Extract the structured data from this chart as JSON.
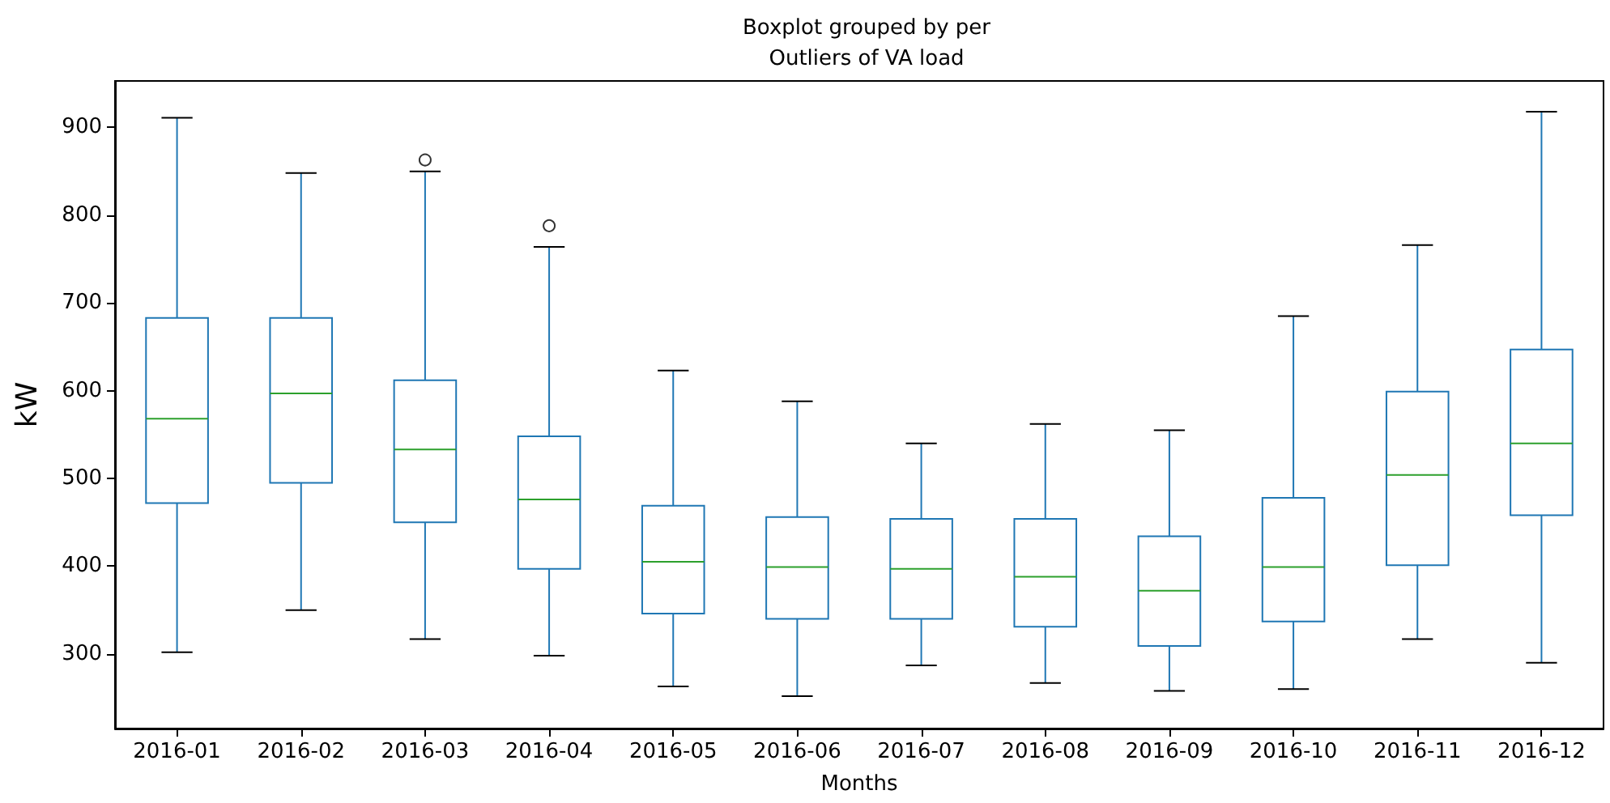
{
  "chart_data": {
    "type": "box",
    "title": "Boxplot grouped by per",
    "subtitle": "Outliers of VA load",
    "xlabel": "Months",
    "ylabel": "kW",
    "categories": [
      "2016-01",
      "2016-02",
      "2016-03",
      "2016-04",
      "2016-05",
      "2016-06",
      "2016-07",
      "2016-08",
      "2016-09",
      "2016-10",
      "2016-11",
      "2016-12"
    ],
    "ylim": [
      215,
      953
    ],
    "yticks": [
      300,
      400,
      500,
      600,
      700,
      800,
      900
    ],
    "grid": false,
    "series": [
      {
        "color": "#1f77b4",
        "boxes": [
          {
            "low": 302,
            "q1": 472,
            "median": 568,
            "q3": 683,
            "high": 911
          },
          {
            "low": 350,
            "q1": 495,
            "median": 597,
            "q3": 683,
            "high": 848
          },
          {
            "low": 317,
            "q1": 450,
            "median": 533,
            "q3": 612,
            "high": 850,
            "outliers": [
              863
            ]
          },
          {
            "low": 298,
            "q1": 397,
            "median": 476,
            "q3": 548,
            "high": 764,
            "outliers": [
              788
            ]
          },
          {
            "low": 263,
            "q1": 346,
            "median": 405,
            "q3": 469,
            "high": 623
          },
          {
            "low": 252,
            "q1": 340,
            "median": 399,
            "q3": 456,
            "high": 588
          },
          {
            "low": 287,
            "q1": 340,
            "median": 397,
            "q3": 454,
            "high": 540
          },
          {
            "low": 267,
            "q1": 331,
            "median": 388,
            "q3": 454,
            "high": 562
          },
          {
            "low": 258,
            "q1": 309,
            "median": 372,
            "q3": 434,
            "high": 555
          },
          {
            "low": 260,
            "q1": 337,
            "median": 399,
            "q3": 478,
            "high": 685
          },
          {
            "low": 317,
            "q1": 401,
            "median": 504,
            "q3": 599,
            "high": 766
          },
          {
            "low": 290,
            "q1": 458,
            "median": 540,
            "q3": 647,
            "high": 918
          }
        ]
      }
    ]
  }
}
